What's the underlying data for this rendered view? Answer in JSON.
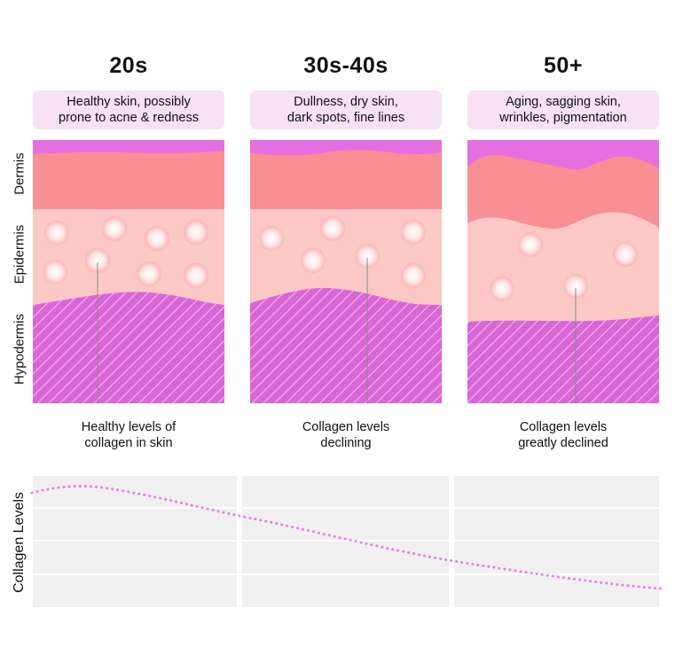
{
  "stages": [
    {
      "age": "20s",
      "symptoms": "Healthy skin, possibly\nprone to acne & redness",
      "caption": "Healthy levels of\ncollagen in skin"
    },
    {
      "age": "30s-40s",
      "symptoms": "Dullness, dry skin,\ndark spots, fine lines",
      "caption": "Collagen levels\ndeclining"
    },
    {
      "age": "50+",
      "symptoms": "Aging, sagging skin,\nwrinkles, pigmentation",
      "caption": "Collagen levels\ngreatly declined"
    }
  ],
  "layers": [
    "Dermis",
    "Epidermis",
    "Hypodermis"
  ],
  "graph": {
    "axis_label": "Collagen Levels"
  },
  "colors": {
    "top_band": "#e46fe0",
    "dermis": "#f88f95",
    "epidermis": "#fbc8c6",
    "hypodermis": "#d966d6",
    "box": "#f7e1f3",
    "graph_bg": "#f0f0f0",
    "curve": "#e27fe6"
  }
}
